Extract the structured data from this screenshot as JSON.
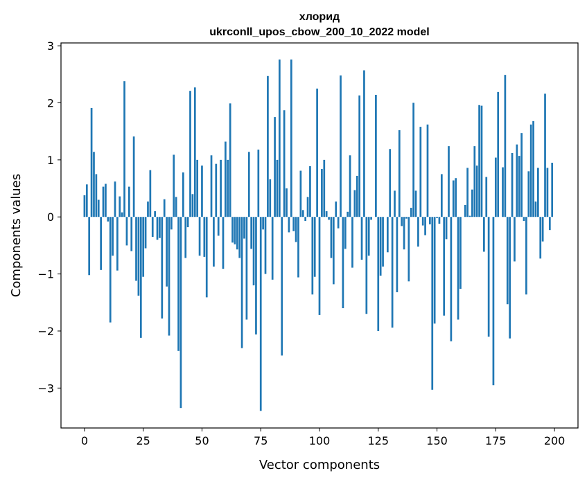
{
  "chart_data": {
    "type": "bar",
    "title_line1": "хлорид",
    "title_line2": "ukrconll_upos_cbow_200_10_2022 model",
    "xlabel": "Vector components",
    "ylabel": "Components values",
    "xlim": [
      -10,
      210
    ],
    "ylim": [
      -3.7,
      3.05
    ],
    "xticks": [
      0,
      25,
      50,
      75,
      100,
      125,
      150,
      175,
      200
    ],
    "yticks": [
      -3,
      -2,
      -1,
      0,
      1,
      2,
      3
    ],
    "color": "#1f77b4",
    "grid": false,
    "values": [
      0.38,
      0.57,
      -1.02,
      1.91,
      1.14,
      0.75,
      0.3,
      -0.93,
      0.53,
      0.58,
      -0.08,
      -1.85,
      -0.68,
      0.62,
      -0.94,
      0.36,
      0.08,
      2.38,
      -0.5,
      0.53,
      -0.6,
      1.41,
      -1.12,
      -1.38,
      -2.12,
      -1.05,
      -0.55,
      0.27,
      0.82,
      -0.35,
      0.1,
      -0.4,
      -0.37,
      -1.78,
      0.31,
      -1.22,
      -2.08,
      -0.22,
      1.09,
      0.35,
      -2.35,
      -3.35,
      0.78,
      -0.72,
      -0.18,
      2.21,
      0.4,
      2.27,
      1.0,
      -0.68,
      0.9,
      -0.7,
      -1.41,
      0.0,
      1.08,
      -0.87,
      0.93,
      -0.33,
      1.0,
      -0.91,
      1.32,
      1.0,
      1.99,
      -0.45,
      -0.48,
      -0.57,
      -0.72,
      -2.3,
      -0.38,
      -1.8,
      1.14,
      -0.56,
      -1.2,
      -2.06,
      1.18,
      -3.4,
      -0.22,
      -1.0,
      2.47,
      0.66,
      -1.1,
      1.75,
      1.0,
      2.76,
      -2.43,
      1.87,
      0.5,
      -0.27,
      2.76,
      -0.25,
      -0.44,
      -1.06,
      0.81,
      0.12,
      -0.07,
      0.35,
      0.89,
      -1.36,
      -1.05,
      2.25,
      -1.72,
      0.84,
      1.0,
      0.1,
      -0.05,
      -0.72,
      -1.18,
      0.27,
      -0.2,
      2.48,
      -1.6,
      -0.56,
      0.09,
      1.08,
      -0.89,
      0.47,
      0.72,
      2.13,
      -0.75,
      2.57,
      -1.7,
      -0.68,
      -0.05,
      0.0,
      2.14,
      -2.0,
      -1.03,
      -0.87,
      0.0,
      -0.62,
      1.19,
      -1.94,
      0.46,
      -1.32,
      1.52,
      -0.16,
      -0.57,
      -0.03,
      -1.13,
      0.16,
      2.0,
      0.46,
      -0.52,
      1.58,
      -0.15,
      -0.32,
      1.62,
      -0.13,
      -3.03,
      -1.87,
      -0.02,
      -0.12,
      0.75,
      -1.73,
      -0.39,
      1.24,
      -2.18,
      0.64,
      0.68,
      -1.8,
      -1.26,
      0.0,
      0.21,
      0.86,
      0.02,
      0.48,
      1.24,
      0.9,
      1.96,
      1.95,
      -0.61,
      0.7,
      -2.1,
      0.0,
      -2.95,
      1.04,
      2.19,
      0.0,
      0.87,
      2.49,
      -1.53,
      -2.13,
      1.12,
      -0.78,
      1.27,
      1.07,
      1.47,
      -0.07,
      -1.36,
      0.8,
      1.62,
      1.68,
      0.27,
      0.86,
      -0.73,
      -0.43,
      2.16,
      0.86,
      -0.23,
      0.95
    ]
  }
}
